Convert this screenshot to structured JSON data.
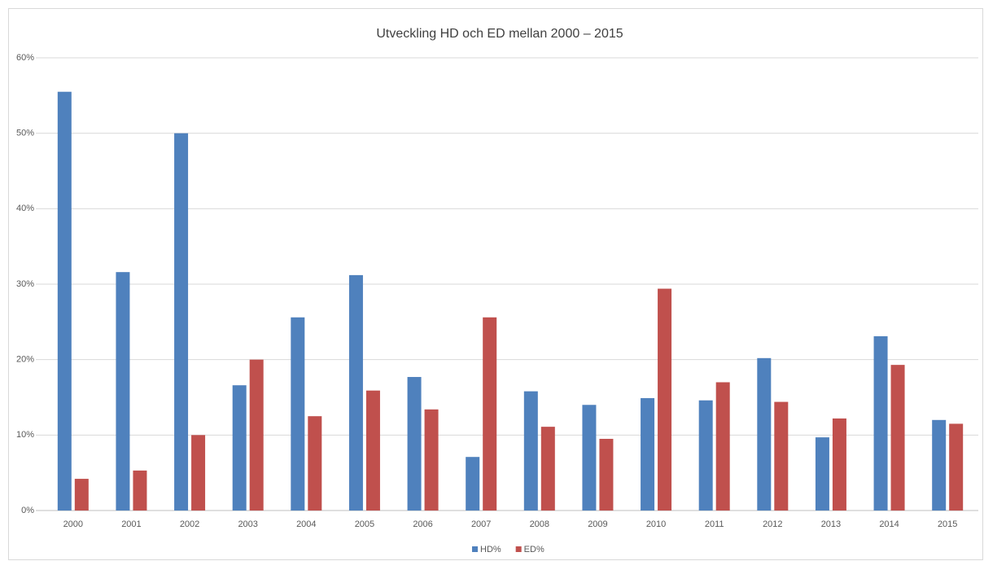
{
  "chart_data": {
    "type": "bar",
    "title": "Utveckling HD och ED mellan 2000 – 2015",
    "categories": [
      "2000",
      "2001",
      "2002",
      "2003",
      "2004",
      "2005",
      "2006",
      "2007",
      "2008",
      "2009",
      "2010",
      "2011",
      "2012",
      "2013",
      "2014",
      "2015"
    ],
    "series": [
      {
        "name": "HD%",
        "color": "#4f81bd",
        "values": [
          55.5,
          31.6,
          50.0,
          16.6,
          25.6,
          31.2,
          17.7,
          7.1,
          15.8,
          14.0,
          14.9,
          14.6,
          20.2,
          9.7,
          23.1,
          12.0
        ]
      },
      {
        "name": "ED%",
        "color": "#c0504d",
        "values": [
          4.2,
          5.3,
          10.0,
          20.0,
          12.5,
          15.9,
          13.4,
          25.6,
          11.1,
          9.5,
          29.4,
          17.0,
          14.4,
          12.2,
          19.3,
          11.5
        ]
      }
    ],
    "ylim": [
      0,
      60
    ],
    "yticks": [
      {
        "value": 0,
        "label": "0%"
      },
      {
        "value": 10,
        "label": "10%"
      },
      {
        "value": 20,
        "label": "20%"
      },
      {
        "value": 30,
        "label": "30%"
      },
      {
        "value": 40,
        "label": "40%"
      },
      {
        "value": 50,
        "label": "50%"
      },
      {
        "value": 60,
        "label": "60%"
      }
    ],
    "grid": true,
    "legend": "bottom"
  }
}
